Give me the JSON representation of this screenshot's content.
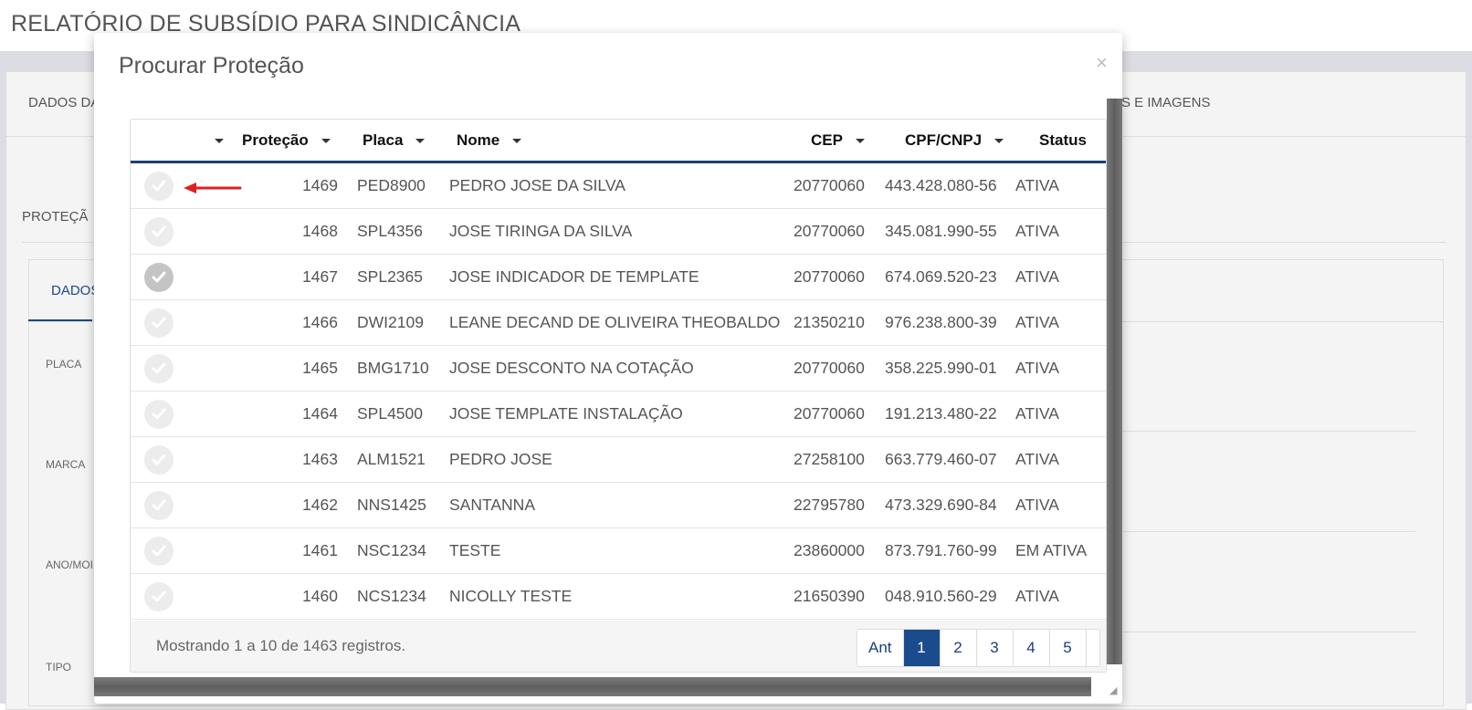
{
  "page": {
    "title": "RELATÓRIO DE SUBSÍDIO PARA SINDICÂNCIA",
    "tab_left": "DADOS DA",
    "tab_right": "S E IMAGENS",
    "section": "PROTEÇÃ",
    "inner_tab": "DADOS",
    "labels": [
      "PLACA",
      "MARCA",
      "ANO/MOI",
      "TIPO"
    ]
  },
  "modal": {
    "title": "Procurar Proteção",
    "close_label": "×"
  },
  "grid": {
    "columns": [
      "Proteção",
      "Placa",
      "Nome",
      "CEP",
      "CPF/CNPJ",
      "Status"
    ],
    "rows": [
      {
        "protecao": "1469",
        "placa": "PED8900",
        "nome": "PEDRO JOSE DA SILVA",
        "cep": "20770060",
        "cpf": "443.428.080-56",
        "status": "ATIVA"
      },
      {
        "protecao": "1468",
        "placa": "SPL4356",
        "nome": "JOSE TIRINGA DA SILVA",
        "cep": "20770060",
        "cpf": "345.081.990-55",
        "status": "ATIVA"
      },
      {
        "protecao": "1467",
        "placa": "SPL2365",
        "nome": "JOSE INDICADOR DE TEMPLATE",
        "cep": "20770060",
        "cpf": "674.069.520-23",
        "status": "ATIVA"
      },
      {
        "protecao": "1466",
        "placa": "DWI2109",
        "nome": "LEANE DECAND DE OLIVEIRA THEOBALDO",
        "cep": "21350210",
        "cpf": "976.238.800-39",
        "status": "ATIVA"
      },
      {
        "protecao": "1465",
        "placa": "BMG1710",
        "nome": "JOSE DESCONTO NA COTAÇÃO",
        "cep": "20770060",
        "cpf": "358.225.990-01",
        "status": "ATIVA"
      },
      {
        "protecao": "1464",
        "placa": "SPL4500",
        "nome": "JOSE TEMPLATE INSTALAÇÃO",
        "cep": "20770060",
        "cpf": "191.213.480-22",
        "status": "ATIVA"
      },
      {
        "protecao": "1463",
        "placa": "ALM1521",
        "nome": "PEDRO JOSE",
        "cep": "27258100",
        "cpf": "663.779.460-07",
        "status": "ATIVA"
      },
      {
        "protecao": "1462",
        "placa": "NNS1425",
        "nome": "SANTANNA",
        "cep": "22795780",
        "cpf": "473.329.690-84",
        "status": "ATIVA"
      },
      {
        "protecao": "1461",
        "placa": "NSC1234",
        "nome": "TESTE",
        "cep": "23860000",
        "cpf": "873.791.760-99",
        "status": "EM ATIVA"
      },
      {
        "protecao": "1460",
        "placa": "NCS1234",
        "nome": "NICOLLY TESTE",
        "cep": "21650390",
        "cpf": "048.910.560-29",
        "status": "ATIVA"
      }
    ],
    "selected_row_index": 2,
    "info": "Mostrando 1 a 10 de 1463 registros.",
    "pager": {
      "prev": "Ant",
      "pages": [
        "1",
        "2",
        "3",
        "4",
        "5"
      ],
      "active": "1"
    }
  },
  "colors": {
    "accent": "#1a4b8c",
    "header_underline": "#1a3f77",
    "arrow": "#e02020"
  },
  "icons": {
    "select": "check-circle-icon",
    "sort": "caret-down-icon",
    "annotation": "red-arrow-icon"
  }
}
